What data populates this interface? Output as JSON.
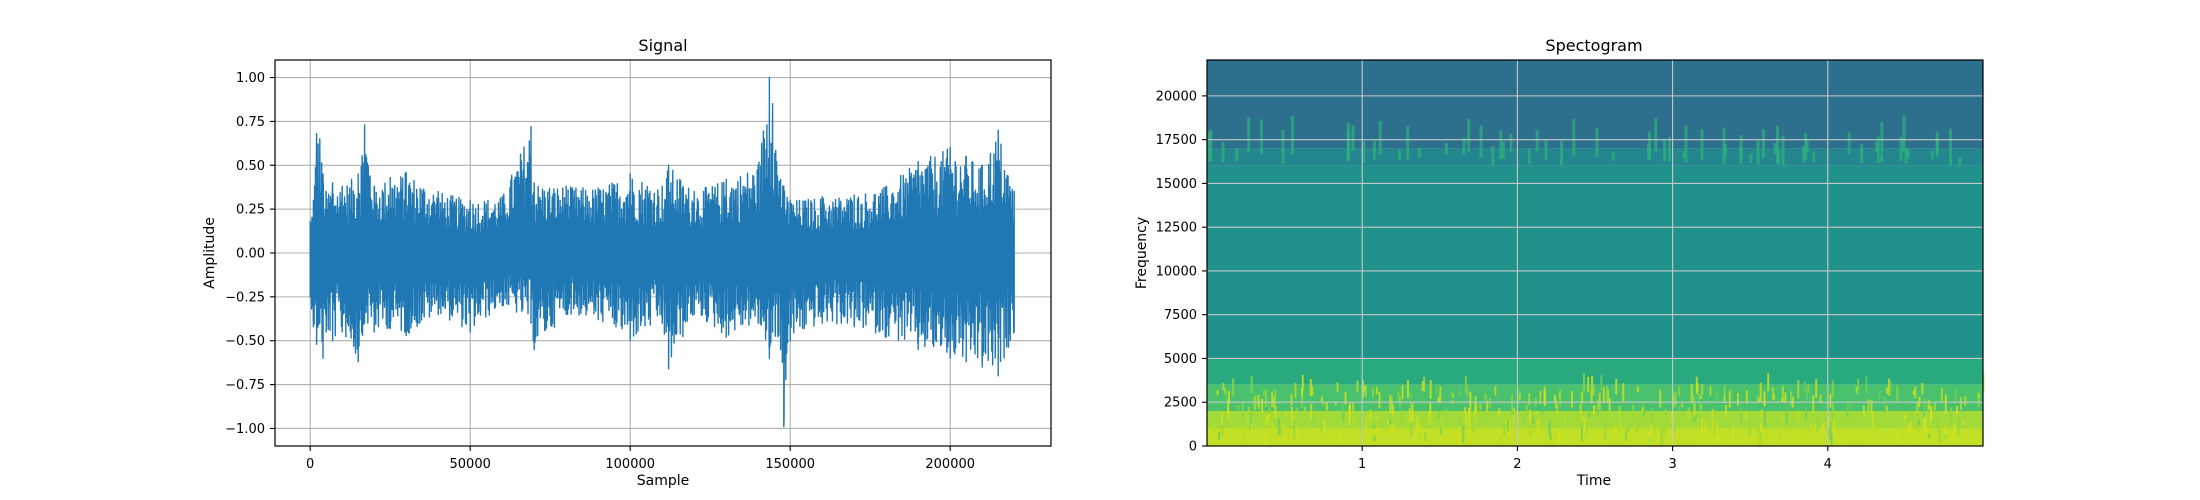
{
  "chart_data": [
    {
      "type": "line",
      "title": "Signal",
      "xlabel": "Sample",
      "ylabel": "Amplitude",
      "xlim": [
        -11000,
        231500
      ],
      "ylim": [
        -1.1,
        1.1
      ],
      "xticks": [
        0,
        50000,
        100000,
        150000,
        200000
      ],
      "xtick_labels": [
        "0",
        "50000",
        "100000",
        "150000",
        "200000"
      ],
      "yticks": [
        1.0,
        0.75,
        0.5,
        0.25,
        0.0,
        -0.25,
        -0.5,
        -0.75,
        -1.0
      ],
      "ytick_labels": [
        "1.00",
        "0.75",
        "0.50",
        "0.25",
        "0.00",
        "−0.25",
        "−0.50",
        "−0.75",
        "−1.00"
      ],
      "grid": true,
      "color": "#1f77b4",
      "series": [
        {
          "x": [
            0,
            1000,
            2000,
            3000,
            4000,
            5000,
            7000,
            10000,
            15000,
            17000,
            20000,
            25000,
            30000,
            40000,
            50000,
            60000,
            69000,
            70000,
            80000,
            90000,
            100000,
            110000,
            112000,
            120000,
            130000,
            140000,
            143500,
            144500,
            147000,
            148000,
            150000,
            160000,
            170000,
            180000,
            190000,
            200000,
            205000,
            210000,
            215000,
            220000
          ],
          "upper": [
            0.18,
            0.3,
            0.68,
            0.65,
            0.45,
            0.35,
            0.4,
            0.38,
            0.45,
            0.73,
            0.38,
            0.43,
            0.46,
            0.35,
            0.3,
            0.32,
            0.72,
            0.4,
            0.38,
            0.37,
            0.45,
            0.38,
            0.5,
            0.35,
            0.42,
            0.5,
            1.0,
            0.85,
            0.42,
            0.38,
            0.3,
            0.32,
            0.33,
            0.38,
            0.52,
            0.6,
            0.55,
            0.5,
            0.7,
            0.35
          ],
          "lower": [
            -0.25,
            -0.42,
            -0.52,
            -0.4,
            -0.6,
            -0.45,
            -0.5,
            -0.45,
            -0.62,
            -0.4,
            -0.45,
            -0.43,
            -0.47,
            -0.35,
            -0.45,
            -0.3,
            -0.4,
            -0.55,
            -0.35,
            -0.38,
            -0.5,
            -0.4,
            -0.66,
            -0.35,
            -0.48,
            -0.4,
            -0.6,
            -0.45,
            -0.55,
            -0.99,
            -0.5,
            -0.4,
            -0.42,
            -0.48,
            -0.55,
            -0.6,
            -0.62,
            -0.65,
            -0.7,
            -0.45
          ]
        }
      ]
    },
    {
      "type": "heatmap",
      "title": "Spectogram",
      "xlabel": "Time",
      "ylabel": "Frequency",
      "xlim": [
        0,
        5
      ],
      "ylim": [
        0,
        22050
      ],
      "xticks": [
        1,
        2,
        3,
        4
      ],
      "xtick_labels": [
        "1",
        "2",
        "3",
        "4"
      ],
      "yticks": [
        0,
        2500,
        5000,
        7500,
        10000,
        12500,
        15000,
        17500,
        20000
      ],
      "ytick_labels": [
        "0",
        "2500",
        "5000",
        "7500",
        "10000",
        "12500",
        "15000",
        "17500",
        "20000"
      ],
      "grid": true,
      "colormap": "viridis",
      "bands": [
        {
          "from": 17000,
          "to": 22050,
          "color": "#2d708e"
        },
        {
          "from": 16000,
          "to": 17000,
          "color": "#24868e"
        },
        {
          "from": 5000,
          "to": 16000,
          "color": "#21918c"
        },
        {
          "from": 3500,
          "to": 5000,
          "color": "#29a97e"
        },
        {
          "from": 2000,
          "to": 3500,
          "color": "#4ac16d"
        },
        {
          "from": 1000,
          "to": 2000,
          "color": "#a2da37"
        },
        {
          "from": 0,
          "to": 1000,
          "color": "#c0df25"
        }
      ],
      "highlight_color": "#2eb37c"
    }
  ]
}
